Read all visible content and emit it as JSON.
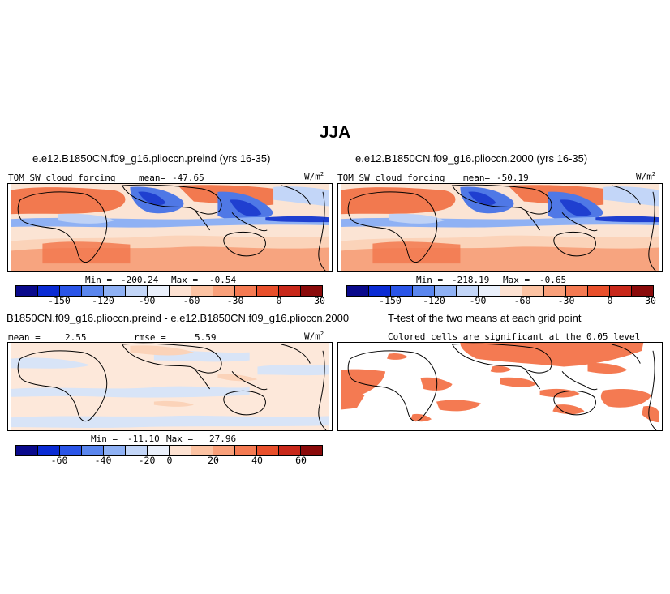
{
  "figure": {
    "title": "JJA",
    "panels": [
      {
        "id": "preind",
        "title": "e.e12.B1850CN.f09_g16.plioccn.preind (yrs 16-35)",
        "variable": "TOM SW cloud forcing",
        "mean_label": "mean=",
        "mean": "-47.65",
        "units": "W/m",
        "units_exp": "2",
        "min_label": "Min =",
        "min": "-200.24",
        "max_label": "Max =",
        "max": "-0.54",
        "colorbar_ticks": [
          "-150",
          "-120",
          "-90",
          "-60",
          "-30",
          "0",
          "30"
        ]
      },
      {
        "id": "2000",
        "title": "e.e12.B1850CN.f09_g16.plioccn.2000 (yrs 16-35)",
        "variable": "TOM SW cloud forcing",
        "mean_label": "mean=",
        "mean": "-50.19",
        "units": "W/m",
        "units_exp": "2",
        "min_label": "Min =",
        "min": "-218.19",
        "max_label": "Max =",
        "max": "-0.65",
        "colorbar_ticks": [
          "-150",
          "-120",
          "-90",
          "-60",
          "-30",
          "0",
          "30"
        ]
      },
      {
        "id": "diff",
        "title": "B1850CN.f09_g16.plioccn.preind - e.e12.B1850CN.f09_g16.plioccn.2000",
        "mean_label": "mean =",
        "mean": "2.55",
        "rmse_label": "rmse =",
        "rmse": "5.59",
        "units": "W/m",
        "units_exp": "2",
        "min_label": "Min =",
        "min": "-11.10",
        "max_label": "Max =",
        "max": "27.96",
        "colorbar_ticks": [
          "-60",
          "-40",
          "-20",
          "0",
          "20",
          "40",
          "60"
        ]
      },
      {
        "id": "ttest",
        "title": "T-test of the two means at each grid point",
        "subtitle": "Colored cells are significant at the 0.05 level"
      }
    ],
    "colorbar_colors": [
      "#0a0a8c",
      "#0a2bd4",
      "#2a55e8",
      "#5a86ee",
      "#8fb1f4",
      "#c3d6f8",
      "#eaf0fb",
      "#fde2d2",
      "#fcc3a3",
      "#f9a07a",
      "#f47a52",
      "#e84f2b",
      "#c8281a",
      "#8a0a0a"
    ],
    "colors": {
      "ocean_bg": "#fbe4d4",
      "orange": "#f2794f",
      "light_orange": "#fbd3b9",
      "blue_mid": "#4f78e6",
      "blue_deep": "#1f3fd0",
      "blue_light": "#bfd2f6",
      "diff_bg": "#fde8da",
      "diff_blue": "#d8e4f7",
      "sig": "#f47a52"
    }
  }
}
